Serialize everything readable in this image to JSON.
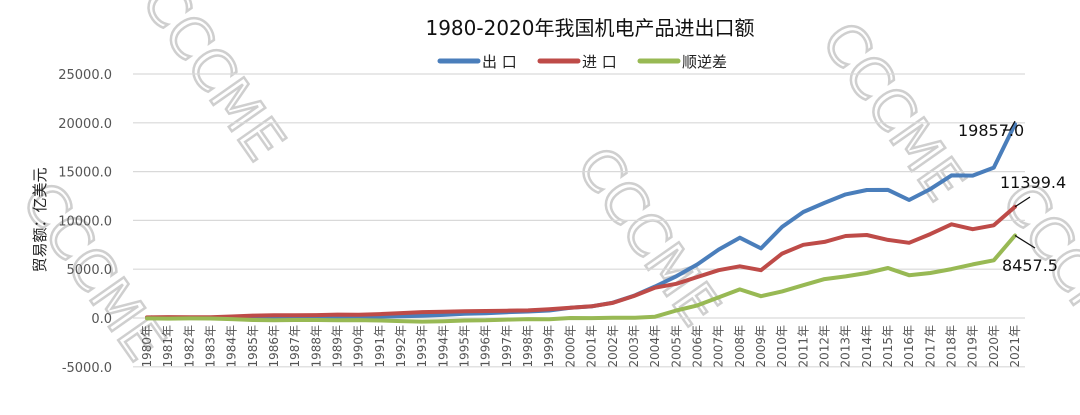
{
  "watermark": "CCCME",
  "chart_data": {
    "type": "line",
    "title": "1980-2020年我国机电产品进出口额",
    "ylabel": "贸易额：亿美元",
    "xlabel": "",
    "ylim": [
      -5000,
      25000
    ],
    "yticks": [
      -5000,
      0,
      5000,
      10000,
      15000,
      20000,
      25000
    ],
    "ytick_labels": [
      "-5000.0",
      "0.0",
      "5000.0",
      "10000.0",
      "15000.0",
      "20000.0",
      "25000.0"
    ],
    "grid": true,
    "legend_position": "top",
    "categories": [
      "1980年",
      "1981年",
      "1982年",
      "1983年",
      "1984年",
      "1985年",
      "1986年",
      "1987年",
      "1988年",
      "1989年",
      "1990年",
      "1991年",
      "1992年",
      "1993年",
      "1994年",
      "1995年",
      "1996年",
      "1997年",
      "1998年",
      "1999年",
      "2000年",
      "2001年",
      "2002年",
      "2003年",
      "2004年",
      "2005年",
      "2006年",
      "2007年",
      "2008年",
      "2009年",
      "2010年",
      "2011年",
      "2012年",
      "2013年",
      "2014年",
      "2015年",
      "2016年",
      "2017年",
      "2018年",
      "2019年",
      "2020年",
      "2021年"
    ],
    "series": [
      {
        "name": "出 口",
        "color": "#4a7ebb",
        "values": [
          20,
          25,
          25,
          30,
          35,
          40,
          50,
          70,
          90,
          110,
          110,
          140,
          180,
          230,
          320,
          440,
          480,
          590,
          670,
          770,
          1050,
          1190,
          1570,
          2270,
          3230,
          4270,
          5490,
          7010,
          8230,
          7130,
          9330,
          10860,
          11790,
          12660,
          13110,
          13120,
          12090,
          13210,
          14610,
          14590,
          15410,
          19857.0
        ]
      },
      {
        "name": "进 口",
        "color": "#be4b48",
        "values": [
          60,
          90,
          70,
          80,
          150,
          250,
          280,
          280,
          300,
          350,
          330,
          400,
          500,
          600,
          650,
          700,
          720,
          750,
          780,
          900,
          1050,
          1200,
          1550,
          2250,
          3100,
          3500,
          4200,
          4900,
          5300,
          4900,
          6600,
          7500,
          7800,
          8400,
          8500,
          8000,
          7700,
          8600,
          9600,
          9100,
          9500,
          11399.4
        ]
      },
      {
        "name": "顺逆差",
        "color": "#98b954",
        "values": [
          -40,
          -65,
          -45,
          -50,
          -115,
          -210,
          -230,
          -210,
          -210,
          -240,
          -220,
          -260,
          -320,
          -370,
          -330,
          -260,
          -240,
          -160,
          -110,
          -130,
          0,
          -10,
          20,
          20,
          130,
          770,
          1290,
          2110,
          2930,
          2230,
          2730,
          3360,
          3990,
          4260,
          4610,
          5120,
          4390,
          4610,
          5010,
          5490,
          5910,
          8457.5
        ]
      }
    ],
    "data_labels": [
      {
        "series": "出 口",
        "category": "2021年",
        "text": "19857.0"
      },
      {
        "series": "进 口",
        "category": "2021年",
        "text": "11399.4"
      },
      {
        "series": "顺逆差",
        "category": "2021年",
        "text": "8457.5"
      }
    ]
  }
}
